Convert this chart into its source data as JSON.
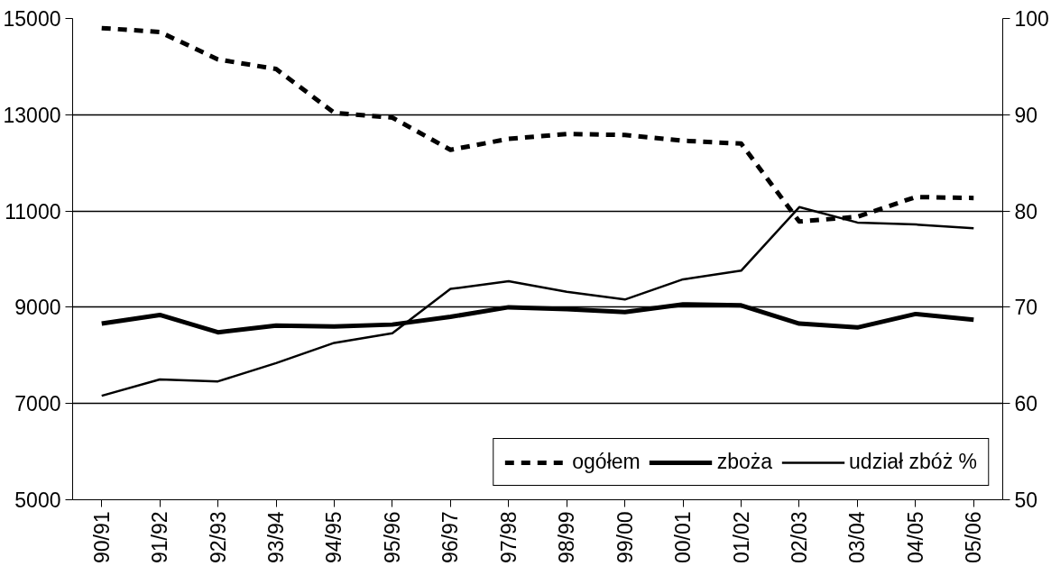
{
  "chart_data": {
    "type": "line",
    "categories": [
      "90/91",
      "91/92",
      "92/93",
      "93/94",
      "94/95",
      "95/96",
      "96/97",
      "97/98",
      "98/99",
      "99/00",
      "00/01",
      "01/02",
      "02/03",
      "03/04",
      "04/05",
      "05/06"
    ],
    "series": [
      {
        "name": "ogółem",
        "color": "#000000",
        "line_style": "dashed",
        "values": [
          14800,
          14720,
          14150,
          13950,
          13040,
          12940,
          12270,
          12500,
          12600,
          12580,
          12460,
          12400,
          10780,
          10880,
          11290,
          11270
        ]
      },
      {
        "name": "zboża",
        "color": "#000000",
        "line_style": "solid",
        "values": [
          8660,
          8840,
          8480,
          8620,
          8600,
          8640,
          8800,
          9000,
          8960,
          8900,
          9060,
          9040,
          8660,
          8580,
          8860,
          8740
        ]
      },
      {
        "name": "udział zbóż %",
        "color": "#000000",
        "line_style": "solid",
        "axis": "y2",
        "values": [
          60.8,
          62.5,
          62.3,
          64.2,
          66.3,
          67.3,
          71.9,
          72.7,
          71.6,
          70.8,
          72.9,
          73.8,
          80.4,
          78.8,
          78.6,
          78.2
        ]
      }
    ],
    "ylim": [
      5000,
      15000
    ],
    "yticks": [
      5000,
      7000,
      9000,
      11000,
      13000,
      15000
    ],
    "y2lim": [
      50,
      100
    ],
    "y2ticks": [
      50,
      60,
      70,
      80,
      90,
      100
    ],
    "grid": "y",
    "legend": "bottom right",
    "marker": "none"
  }
}
